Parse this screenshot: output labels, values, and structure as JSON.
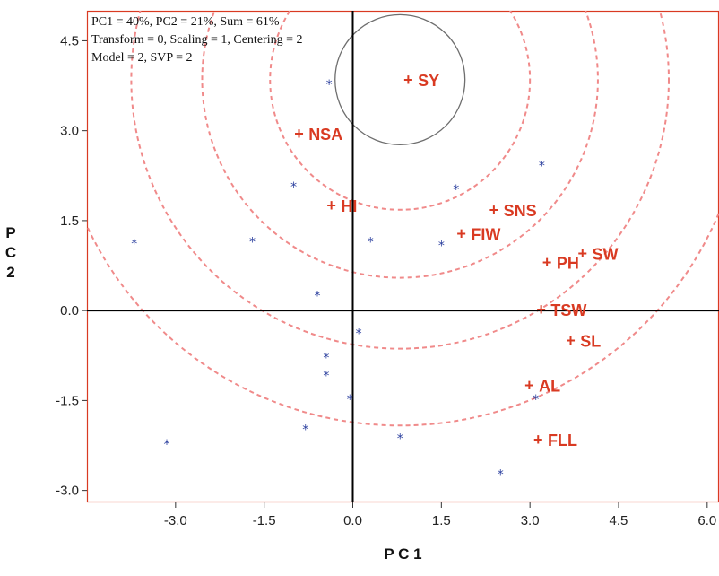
{
  "chart_data": {
    "type": "scatter",
    "info_lines": [
      "PC1 = 40%, PC2 = 21%, Sum = 61%",
      "Transform = 0, Scaling = 1, Centering = 2",
      "Model = 2, SVP = 2"
    ],
    "xlabel": "P C 1",
    "ylabel": [
      "P",
      "C",
      "2"
    ],
    "xlim": [
      -4.5,
      6.2
    ],
    "ylim": [
      -3.2,
      5.0
    ],
    "x_ticks": [
      -3.0,
      -1.5,
      0.0,
      1.5,
      3.0,
      4.5,
      6.0
    ],
    "x_tick_labels": [
      "-3.0",
      "-1.5",
      "0.0",
      "1.5",
      "3.0",
      "4.5",
      "6.0"
    ],
    "y_ticks": [
      -3.0,
      -1.5,
      0.0,
      1.5,
      3.0,
      4.5
    ],
    "y_tick_labels": [
      "-3.0",
      "-1.5",
      "0.0",
      "1.5",
      "3.0",
      "4.5"
    ],
    "traits": [
      {
        "label": "SY",
        "x": 0.95,
        "y": 3.85
      },
      {
        "label": "NSA",
        "x": -0.9,
        "y": 2.95
      },
      {
        "label": "HI",
        "x": -0.35,
        "y": 1.75
      },
      {
        "label": "SNS",
        "x": 2.4,
        "y": 1.68
      },
      {
        "label": "FIW",
        "x": 1.85,
        "y": 1.28
      },
      {
        "label": "SW",
        "x": 3.9,
        "y": 0.95
      },
      {
        "label": "PH",
        "x": 3.3,
        "y": 0.8
      },
      {
        "label": "TSW",
        "x": 3.2,
        "y": 0.02
      },
      {
        "label": "SL",
        "x": 3.7,
        "y": -0.5
      },
      {
        "label": "AL",
        "x": 3.0,
        "y": -1.25
      },
      {
        "label": "FLL",
        "x": 3.15,
        "y": -2.15
      }
    ],
    "genotypes": [
      {
        "x": -0.4,
        "y": 3.8
      },
      {
        "x": 3.2,
        "y": 2.45
      },
      {
        "x": -1.0,
        "y": 2.1
      },
      {
        "x": 1.75,
        "y": 2.05
      },
      {
        "x": -3.7,
        "y": 1.15
      },
      {
        "x": -1.7,
        "y": 1.18
      },
      {
        "x": 0.3,
        "y": 1.18
      },
      {
        "x": 1.5,
        "y": 1.12
      },
      {
        "x": -0.6,
        "y": 0.28
      },
      {
        "x": 0.1,
        "y": -0.35
      },
      {
        "x": -0.45,
        "y": -0.75
      },
      {
        "x": -0.45,
        "y": -1.05
      },
      {
        "x": -0.05,
        "y": -1.45
      },
      {
        "x": 3.1,
        "y": -1.45
      },
      {
        "x": -0.8,
        "y": -1.95
      },
      {
        "x": 0.8,
        "y": -2.1
      },
      {
        "x": -3.15,
        "y": -2.2
      },
      {
        "x": 2.5,
        "y": -2.7
      }
    ],
    "ideal_circle": {
      "center": [
        0.8,
        3.85
      ],
      "radius": 1.1
    },
    "concentric_circles": {
      "center": [
        0.8,
        3.85
      ],
      "radii": [
        2.2,
        3.35,
        4.55,
        5.85
      ]
    },
    "colors": {
      "trait": "#d93a22",
      "genotype": "#2b3f9e",
      "frame": "#d93a22",
      "concentric": "#f08a8a",
      "ideal_circle": "#6e6e6e",
      "axes": "#000000"
    },
    "grid": false,
    "legend": "none"
  }
}
